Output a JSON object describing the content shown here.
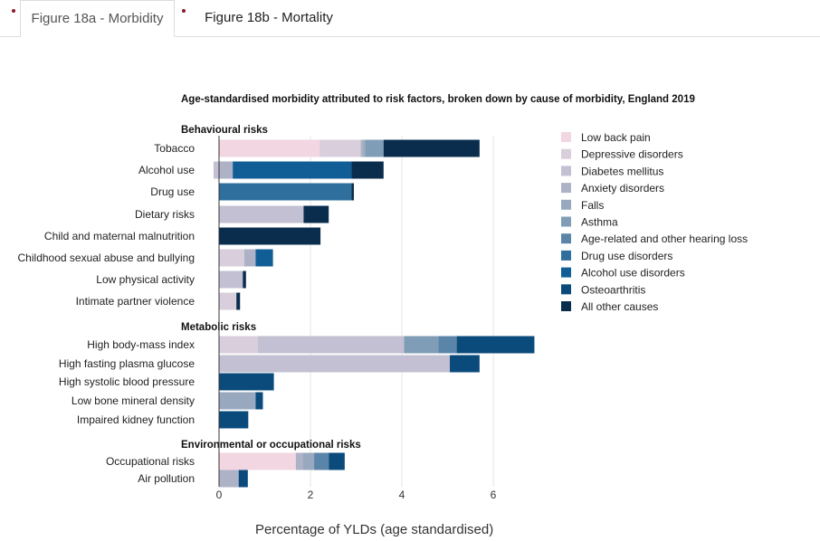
{
  "tabs": [
    {
      "label": "Figure 18a - Morbidity",
      "active": true
    },
    {
      "label": "Figure 18b - Mortality",
      "active": false
    }
  ],
  "chart_data": {
    "type": "bar",
    "orientation": "horizontal",
    "stacked": true,
    "title": "Age-standardised morbidity attributed to risk factors, broken down by cause of morbidity, England 2019",
    "xlabel": "Percentage of YLDs (age standardised)",
    "xlim": [
      0,
      7
    ],
    "xticks": [
      0,
      2,
      4,
      6
    ],
    "grid": true,
    "legend_position": "right",
    "series": [
      {
        "name": "Low back pain",
        "color": "#f2d6e2"
      },
      {
        "name": "Depressive disorders",
        "color": "#d8cedc"
      },
      {
        "name": "Diabetes mellitus",
        "color": "#c2c0d2"
      },
      {
        "name": "Anxiety disorders",
        "color": "#adb2c6"
      },
      {
        "name": "Falls",
        "color": "#98a9bf"
      },
      {
        "name": "Asthma",
        "color": "#7f9db6"
      },
      {
        "name": "Age-related and other hearing loss",
        "color": "#5b85a8"
      },
      {
        "name": "Drug use disorders",
        "color": "#2e6f9e"
      },
      {
        "name": "Alcohol use disorders",
        "color": "#115e96"
      },
      {
        "name": "Osteoarthritis",
        "color": "#0b4b7c"
      },
      {
        "name": "All other causes",
        "color": "#0a2d4d"
      }
    ],
    "groups": [
      {
        "name": "Behavioural risks",
        "rows": [
          {
            "label": "Tobacco",
            "segments": [
              [
                "Low back pain",
                2.2
              ],
              [
                "Depressive disorders",
                0.9
              ],
              [
                "Anxiety disorders",
                0.05
              ],
              [
                "Falls",
                0.05
              ],
              [
                "Asthma",
                0.4
              ],
              [
                "All other causes",
                2.1
              ]
            ]
          },
          {
            "label": "Alcohol use",
            "offset": -0.12,
            "segments": [
              [
                "Diabetes mellitus",
                0.12
              ],
              [
                "Anxiety disorders",
                0.3
              ],
              [
                "Alcohol use disorders",
                2.6
              ],
              [
                "All other causes",
                0.7
              ]
            ]
          },
          {
            "label": "Drug use",
            "segments": [
              [
                "Drug use disorders",
                2.9
              ],
              [
                "All other causes",
                0.05
              ]
            ]
          },
          {
            "label": "Dietary risks",
            "segments": [
              [
                "Diabetes mellitus",
                1.85
              ],
              [
                "All other causes",
                0.55
              ]
            ]
          },
          {
            "label": "Child and maternal malnutrition",
            "segments": [
              [
                "All other causes",
                2.22
              ]
            ]
          },
          {
            "label": "Childhood sexual abuse and bullying",
            "segments": [
              [
                "Depressive disorders",
                0.55
              ],
              [
                "Anxiety disorders",
                0.25
              ],
              [
                "Alcohol use disorders",
                0.38
              ]
            ]
          },
          {
            "label": "Low physical activity",
            "segments": [
              [
                "Diabetes mellitus",
                0.52
              ],
              [
                "All other causes",
                0.07
              ]
            ]
          },
          {
            "label": "Intimate partner violence",
            "segments": [
              [
                "Depressive disorders",
                0.38
              ],
              [
                "All other causes",
                0.08
              ]
            ]
          }
        ]
      },
      {
        "name": "Metabolic risks",
        "rows": [
          {
            "label": "High body-mass index",
            "segments": [
              [
                "Depressive disorders",
                0.85
              ],
              [
                "Diabetes mellitus",
                3.2
              ],
              [
                "Asthma",
                0.75
              ],
              [
                "Age-related and other hearing loss",
                0.4
              ],
              [
                "Osteoarthritis",
                1.7
              ]
            ]
          },
          {
            "label": "High fasting plasma glucose",
            "segments": [
              [
                "Diabetes mellitus",
                5.05
              ],
              [
                "Osteoarthritis",
                0.65
              ]
            ]
          },
          {
            "label": "High systolic blood pressure",
            "segments": [
              [
                "Osteoarthritis",
                1.2
              ]
            ]
          },
          {
            "label": "Low bone mineral density",
            "segments": [
              [
                "Falls",
                0.8
              ],
              [
                "Osteoarthritis",
                0.16
              ]
            ]
          },
          {
            "label": "Impaired kidney function",
            "segments": [
              [
                "Osteoarthritis",
                0.64
              ]
            ]
          }
        ]
      },
      {
        "name": "Environmental or occupational risks",
        "rows": [
          {
            "label": "Occupational risks",
            "segments": [
              [
                "Low back pain",
                1.68
              ],
              [
                "Anxiety disorders",
                0.15
              ],
              [
                "Falls",
                0.25
              ],
              [
                "Age-related and other hearing loss",
                0.32
              ],
              [
                "Osteoarthritis",
                0.35
              ]
            ]
          },
          {
            "label": "Air pollution",
            "segments": [
              [
                "Anxiety disorders",
                0.43
              ],
              [
                "Osteoarthritis",
                0.2
              ]
            ]
          }
        ]
      }
    ]
  }
}
